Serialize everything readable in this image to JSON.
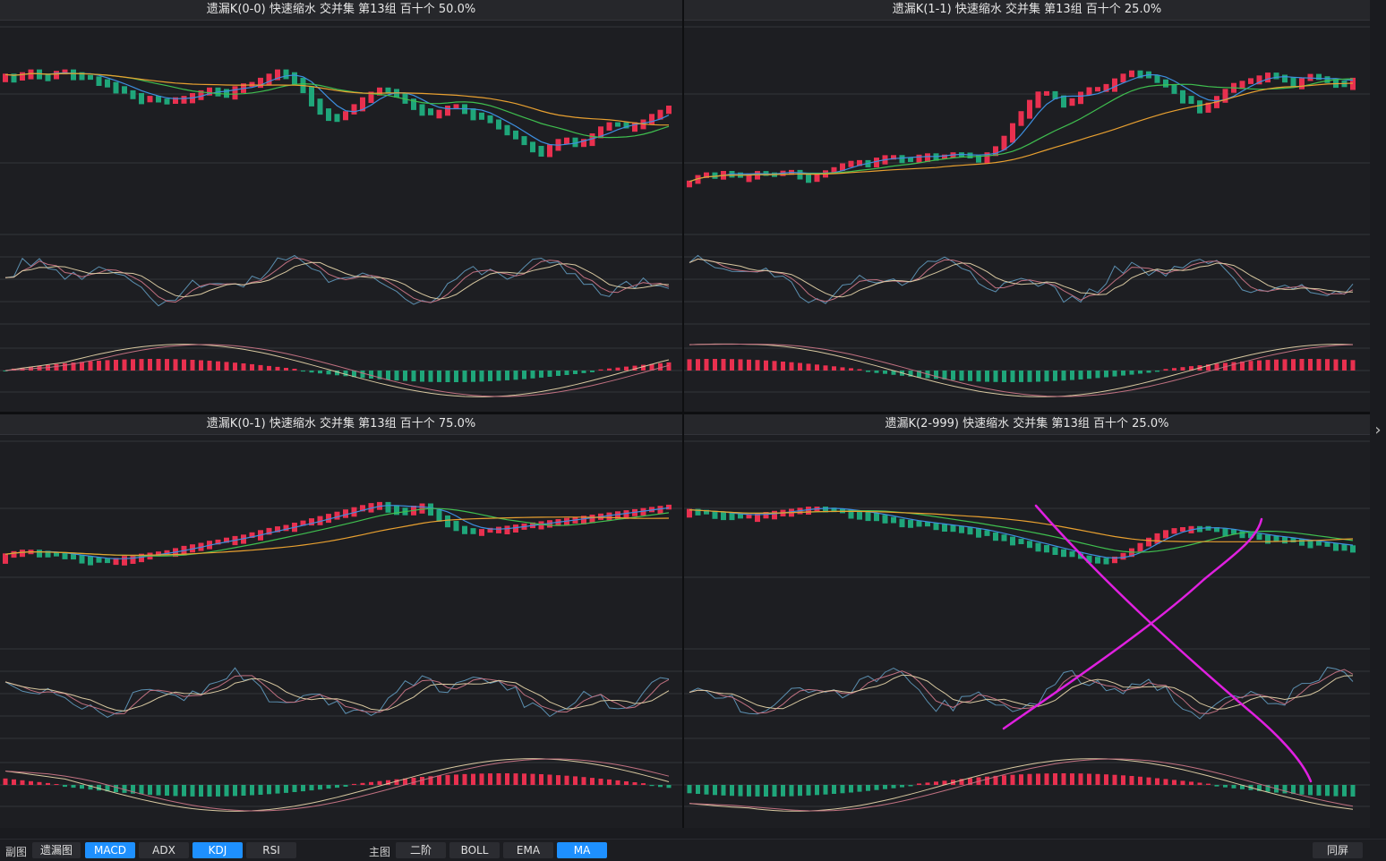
{
  "colors": {
    "up": "#e8304f",
    "down": "#1fa67a",
    "ma1": "#3d8fe0",
    "ma2": "#3fbf4f",
    "ma3": "#e8a030",
    "k": "#5b8fb0",
    "d": "#c07080",
    "j": "#d8c8a0",
    "annot": "#e020e0"
  },
  "panels": [
    {
      "id": "p00",
      "title": "遗漏K(0-0)  快速缩水  交并集 第13组  百十个  50.0%"
    },
    {
      "id": "p11",
      "title": "遗漏K(1-1)  快速缩水  交并集 第13组  百十个  25.0%"
    },
    {
      "id": "p01",
      "title": "遗漏K(0-1)  快速缩水  交并集 第13组  百十个  75.0%"
    },
    {
      "id": "p2",
      "title": "遗漏K(2-999)  快速缩水  交并集 第13组  百十个  25.0%"
    }
  ],
  "toolbar": {
    "sub_label": "副图",
    "sub_buttons": [
      {
        "label": "遗漏图",
        "on": false
      },
      {
        "label": "MACD",
        "on": true
      },
      {
        "label": "ADX",
        "on": false
      },
      {
        "label": "KDJ",
        "on": true
      },
      {
        "label": "RSI",
        "on": false
      }
    ],
    "main_label": "主图",
    "main_buttons": [
      {
        "label": "二阶",
        "on": false
      },
      {
        "label": "BOLL",
        "on": false
      },
      {
        "label": "EMA",
        "on": false
      },
      {
        "label": "MA",
        "on": true
      }
    ],
    "same_screen": "同屏"
  },
  "chart_data": [
    {
      "type": "candlestick",
      "panel": "p00",
      "title": "遗漏K(0-0)  快速缩水  交并集 第13组  百十个  50.0%",
      "price_path": [
        0.15,
        0.16,
        0.14,
        0.12,
        0.15,
        0.17,
        0.13,
        0.12,
        0.14,
        0.16,
        0.17,
        0.19,
        0.21,
        0.24,
        0.27,
        0.29,
        0.32,
        0.31,
        0.33,
        0.34,
        0.32,
        0.31,
        0.29,
        0.27,
        0.25,
        0.26,
        0.28,
        0.24,
        0.22,
        0.21,
        0.18,
        0.15,
        0.12,
        0.14,
        0.18,
        0.24,
        0.33,
        0.4,
        0.44,
        0.46,
        0.42,
        0.37,
        0.32,
        0.28,
        0.25,
        0.26,
        0.29,
        0.33,
        0.37,
        0.4,
        0.42,
        0.41,
        0.38,
        0.37,
        0.4,
        0.43,
        0.45,
        0.48,
        0.52,
        0.56,
        0.6,
        0.64,
        0.67,
        0.7,
        0.66,
        0.62,
        0.61,
        0.63,
        0.62,
        0.58,
        0.53,
        0.5,
        0.5,
        0.52,
        0.5,
        0.48,
        0.44,
        0.41,
        0.38
      ],
      "subtitle": ""
    },
    {
      "type": "candlestick",
      "panel": "p11",
      "title": "遗漏K(1-1)  快速缩水  交并集 第13组  百十个  25.0%",
      "price_path": [
        0.92,
        0.88,
        0.86,
        0.87,
        0.85,
        0.86,
        0.88,
        0.87,
        0.85,
        0.86,
        0.87,
        0.85,
        0.84,
        0.86,
        0.88,
        0.87,
        0.85,
        0.83,
        0.8,
        0.78,
        0.77,
        0.78,
        0.76,
        0.74,
        0.73,
        0.75,
        0.76,
        0.74,
        0.72,
        0.73,
        0.74,
        0.72,
        0.71,
        0.73,
        0.75,
        0.73,
        0.7,
        0.64,
        0.55,
        0.46,
        0.38,
        0.3,
        0.26,
        0.29,
        0.32,
        0.35,
        0.31,
        0.26,
        0.24,
        0.25,
        0.21,
        0.17,
        0.14,
        0.12,
        0.14,
        0.17,
        0.2,
        0.24,
        0.28,
        0.32,
        0.35,
        0.39,
        0.35,
        0.3,
        0.25,
        0.21,
        0.2,
        0.18,
        0.16,
        0.14,
        0.16,
        0.18,
        0.21,
        0.18,
        0.15,
        0.17,
        0.19,
        0.2,
        0.22,
        0.18
      ],
      "subtitle": ""
    },
    {
      "type": "candlestick",
      "panel": "p01",
      "title": "遗漏K(0-1)  快速缩水  交并集 第13组  百十个  75.0%",
      "price_path": [
        0.62,
        0.6,
        0.59,
        0.6,
        0.61,
        0.62,
        0.63,
        0.64,
        0.65,
        0.66,
        0.66,
        0.64,
        0.63,
        0.62,
        0.61,
        0.6,
        0.58,
        0.56,
        0.55,
        0.53,
        0.52,
        0.5,
        0.49,
        0.47,
        0.45,
        0.43,
        0.42,
        0.4,
        0.38,
        0.36,
        0.34,
        0.32,
        0.3,
        0.28,
        0.26,
        0.25,
        0.28,
        0.3,
        0.28,
        0.26,
        0.32,
        0.37,
        0.42,
        0.44,
        0.45,
        0.44,
        0.43,
        0.42,
        0.41,
        0.4,
        0.39,
        0.38,
        0.37,
        0.36,
        0.35,
        0.34,
        0.33,
        0.32,
        0.31,
        0.3,
        0.29,
        0.28,
        0.27
      ],
      "subtitle": ""
    },
    {
      "type": "candlestick",
      "panel": "p2",
      "title": "遗漏K(2-999)  快速缩水  交并集 第13组  百十个  25.0%",
      "price_path": [
        0.3,
        0.31,
        0.32,
        0.33,
        0.34,
        0.34,
        0.33,
        0.32,
        0.31,
        0.3,
        0.29,
        0.28,
        0.29,
        0.3,
        0.31,
        0.32,
        0.33,
        0.35,
        0.37,
        0.38,
        0.39,
        0.4,
        0.41,
        0.42,
        0.43,
        0.44,
        0.46,
        0.48,
        0.5,
        0.52,
        0.54,
        0.56,
        0.58,
        0.6,
        0.62,
        0.64,
        0.65,
        0.66,
        0.64,
        0.6,
        0.55,
        0.5,
        0.46,
        0.44,
        0.43,
        0.42,
        0.43,
        0.44,
        0.45,
        0.47,
        0.48,
        0.49,
        0.5,
        0.51,
        0.52,
        0.53,
        0.54,
        0.55,
        0.56,
        0.57
      ],
      "subtitle": ""
    }
  ]
}
